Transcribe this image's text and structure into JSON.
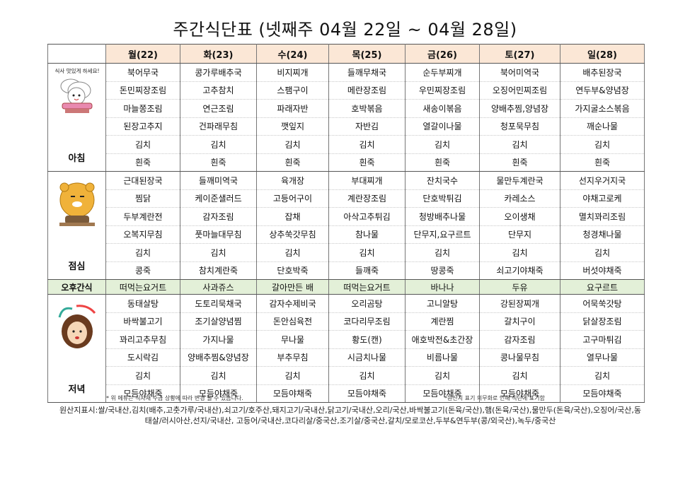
{
  "title": "주간식단표 (넷째주 04월 22일 ~ 04월 28일)",
  "days": [
    "월(22)",
    "화(23)",
    "수(24)",
    "목(25)",
    "금(26)",
    "토(27)",
    "일(28)"
  ],
  "breakfast": {
    "label": "아침",
    "image_caption": "식사 맛있게 하세요!",
    "rows": [
      [
        "북어무국",
        "콩가루배추국",
        "비지찌개",
        "들깨무채국",
        "순두부찌개",
        "북어미역국",
        "배추된장국"
      ],
      [
        "돈민찌장조림",
        "고추참치",
        "스팸구이",
        "메란장조림",
        "우민찌장조림",
        "오징어민찌조림",
        "연두부&양념장"
      ],
      [
        "마늘쫑조림",
        "연근조림",
        "파래자반",
        "호박볶음",
        "새송이볶음",
        "양배추찜,양념장",
        "가지굴소스볶음"
      ],
      [
        "된장고추지",
        "건파래무침",
        "깻잎지",
        "자반김",
        "열갈이나물",
        "청포묵무침",
        "깨순나물"
      ],
      [
        "김치",
        "김치",
        "김치",
        "김치",
        "김치",
        "김치",
        "김치"
      ],
      [
        "흰죽",
        "흰죽",
        "흰죽",
        "흰죽",
        "흰죽",
        "흰죽",
        "흰죽"
      ]
    ]
  },
  "lunch": {
    "label": "점심",
    "rows": [
      [
        "근대된장국",
        "들깨미역국",
        "육개장",
        "부대찌개",
        "잔치국수",
        "물만두계란국",
        "선지우거지국"
      ],
      [
        "찜닭",
        "케이준샐러드",
        "고등어구이",
        "계란장조림",
        "단호박튀김",
        "카레소스",
        "야채고로케"
      ],
      [
        "두부계란전",
        "감자조림",
        "잡채",
        "아삭고추튀김",
        "청방배추나물",
        "오이생채",
        "멸치꽈리조림"
      ],
      [
        "오복지무침",
        "풋마늘대무침",
        "상추쑥갓무침",
        "참나물",
        "단무지,요구르트",
        "단무지",
        "청경채나물"
      ],
      [
        "김치",
        "김치",
        "김치",
        "김치",
        "김치",
        "김치",
        "김치"
      ],
      [
        "콩죽",
        "참치계란죽",
        "단호박죽",
        "들깨죽",
        "땅콩죽",
        "쇠고기야채죽",
        "버섯야채죽"
      ]
    ]
  },
  "snack": {
    "label": "오후간식",
    "items": [
      "떠먹는요거트",
      "사과쥬스",
      "갈아만든 배",
      "떠먹는요거트",
      "바나나",
      "두유",
      "요구르트"
    ]
  },
  "dinner": {
    "label": "저녁",
    "rows": [
      [
        "동태살탕",
        "도토리묵채국",
        "감자수제비국",
        "오리곰탕",
        "고니알탕",
        "강된장찌개",
        "어묵쑥갓탕"
      ],
      [
        "바싹불고기",
        "조기살양념찜",
        "돈안심육전",
        "코다리무조림",
        "계란찜",
        "갈치구이",
        "닭살장조림"
      ],
      [
        "꽈리고추무침",
        "가지나물",
        "무나물",
        "황도(캔)",
        "애호박전&초간장",
        "감자조림",
        "고구마튀김"
      ],
      [
        "도시락김",
        "양배추찜&양념장",
        "부추무침",
        "시금치나물",
        "비름나물",
        "콩나물무침",
        "열무나물"
      ],
      [
        "김치",
        "김치",
        "김치",
        "김치",
        "김치",
        "김치",
        "김치"
      ],
      [
        "모듬야채죽",
        "모듬야채죽",
        "모듬야채죽",
        "모듬야채죽",
        "모듬야채죽",
        "모듬야채죽",
        "모듬야채죽"
      ]
    ]
  },
  "notes": {
    "left": "* 위 메뉴는 식자재 수급 상황에 따라 변경 될 수 있습니다.",
    "right": "*원산지 표기 의무화로 인해 식단에 표기함",
    "origin": "원산지표시:쌀/국내산,김치(배추,고춧가루/국내산),쇠고기/호주산,돼지고기/국내산,닭고기/국내산,오리/국산,바싹불고기(돈육/국산),햄(돈육/국산),물만두(돈육/국산),오징어/국산,동태살/러시아산,선지/국내산, 고등어/국내산,코다리살/중국산,조기살/중국산,갈치/모로코산,두부&연두부(콩/외국산),녹두/중국산"
  },
  "colors": {
    "header_bg": "#fbe7d6",
    "snack_bg": "#e3f0d8"
  }
}
